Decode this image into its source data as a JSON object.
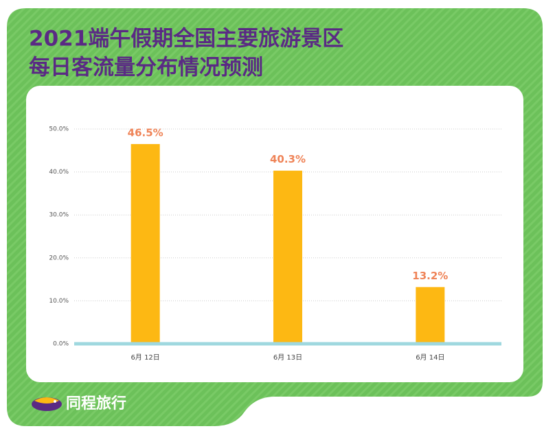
{
  "chart_data": {
    "type": "bar",
    "title": [
      "2021端午假期全国主要旅游景区",
      "每日客流量分布情况预测"
    ],
    "categories": [
      "6月 12日",
      "6月 13日",
      "6月 14日"
    ],
    "values": [
      46.5,
      40.3,
      13.2
    ],
    "value_labels": [
      "46.5%",
      "40.3%",
      "13.2%"
    ],
    "color": "#fdb813",
    "ylim": [
      0,
      50
    ],
    "yticks": [
      {
        "value": 0,
        "label": "0.0%"
      },
      {
        "value": 10,
        "label": "10.0%"
      },
      {
        "value": 20,
        "label": "20.0%"
      },
      {
        "value": 30,
        "label": "30.0%"
      },
      {
        "value": 40,
        "label": "40.0%"
      },
      {
        "value": 50,
        "label": "50.0%"
      }
    ],
    "grid": true
  },
  "brand": "同程旅行"
}
